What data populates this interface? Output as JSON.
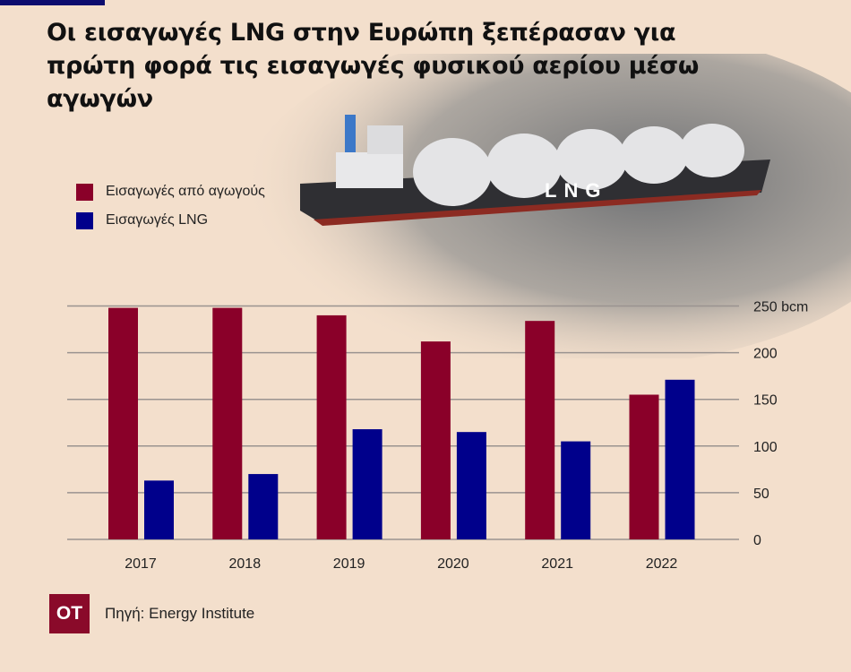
{
  "title": "Οι εισαγωγές LNG στην Ευρώπη ξεπέρασαν για πρώτη φορά τις εισαγωγές φυσικού αερίου μέσω αγωγών",
  "ship_label": "LNG",
  "footer": {
    "logo": "ΟΤ",
    "source": "Πηγή: Energy Institute"
  },
  "colors": {
    "pipeline": "#8a0029",
    "lng": "#00008b",
    "background": "#f3dfcc"
  },
  "chart_data": {
    "type": "bar",
    "title": "Οι εισαγωγές LNG στην Ευρώπη ξεπέρασαν για πρώτη φορά τις εισαγωγές φυσικού αερίου μέσω αγωγών",
    "categories": [
      "2017",
      "2018",
      "2019",
      "2020",
      "2021",
      "2022"
    ],
    "series": [
      {
        "name": "Εισαγωγές από αγωγούς",
        "values": [
          248,
          248,
          240,
          212,
          234,
          155
        ]
      },
      {
        "name": "Εισαγωγές  LNG",
        "values": [
          63,
          70,
          118,
          115,
          105,
          171
        ]
      }
    ],
    "yticks": [
      "0",
      "50",
      "100",
      "150",
      "200",
      "250 bcm"
    ],
    "ylim": [
      0,
      250
    ],
    "ylabel": "bcm",
    "grid": true,
    "legend": "top-left"
  }
}
